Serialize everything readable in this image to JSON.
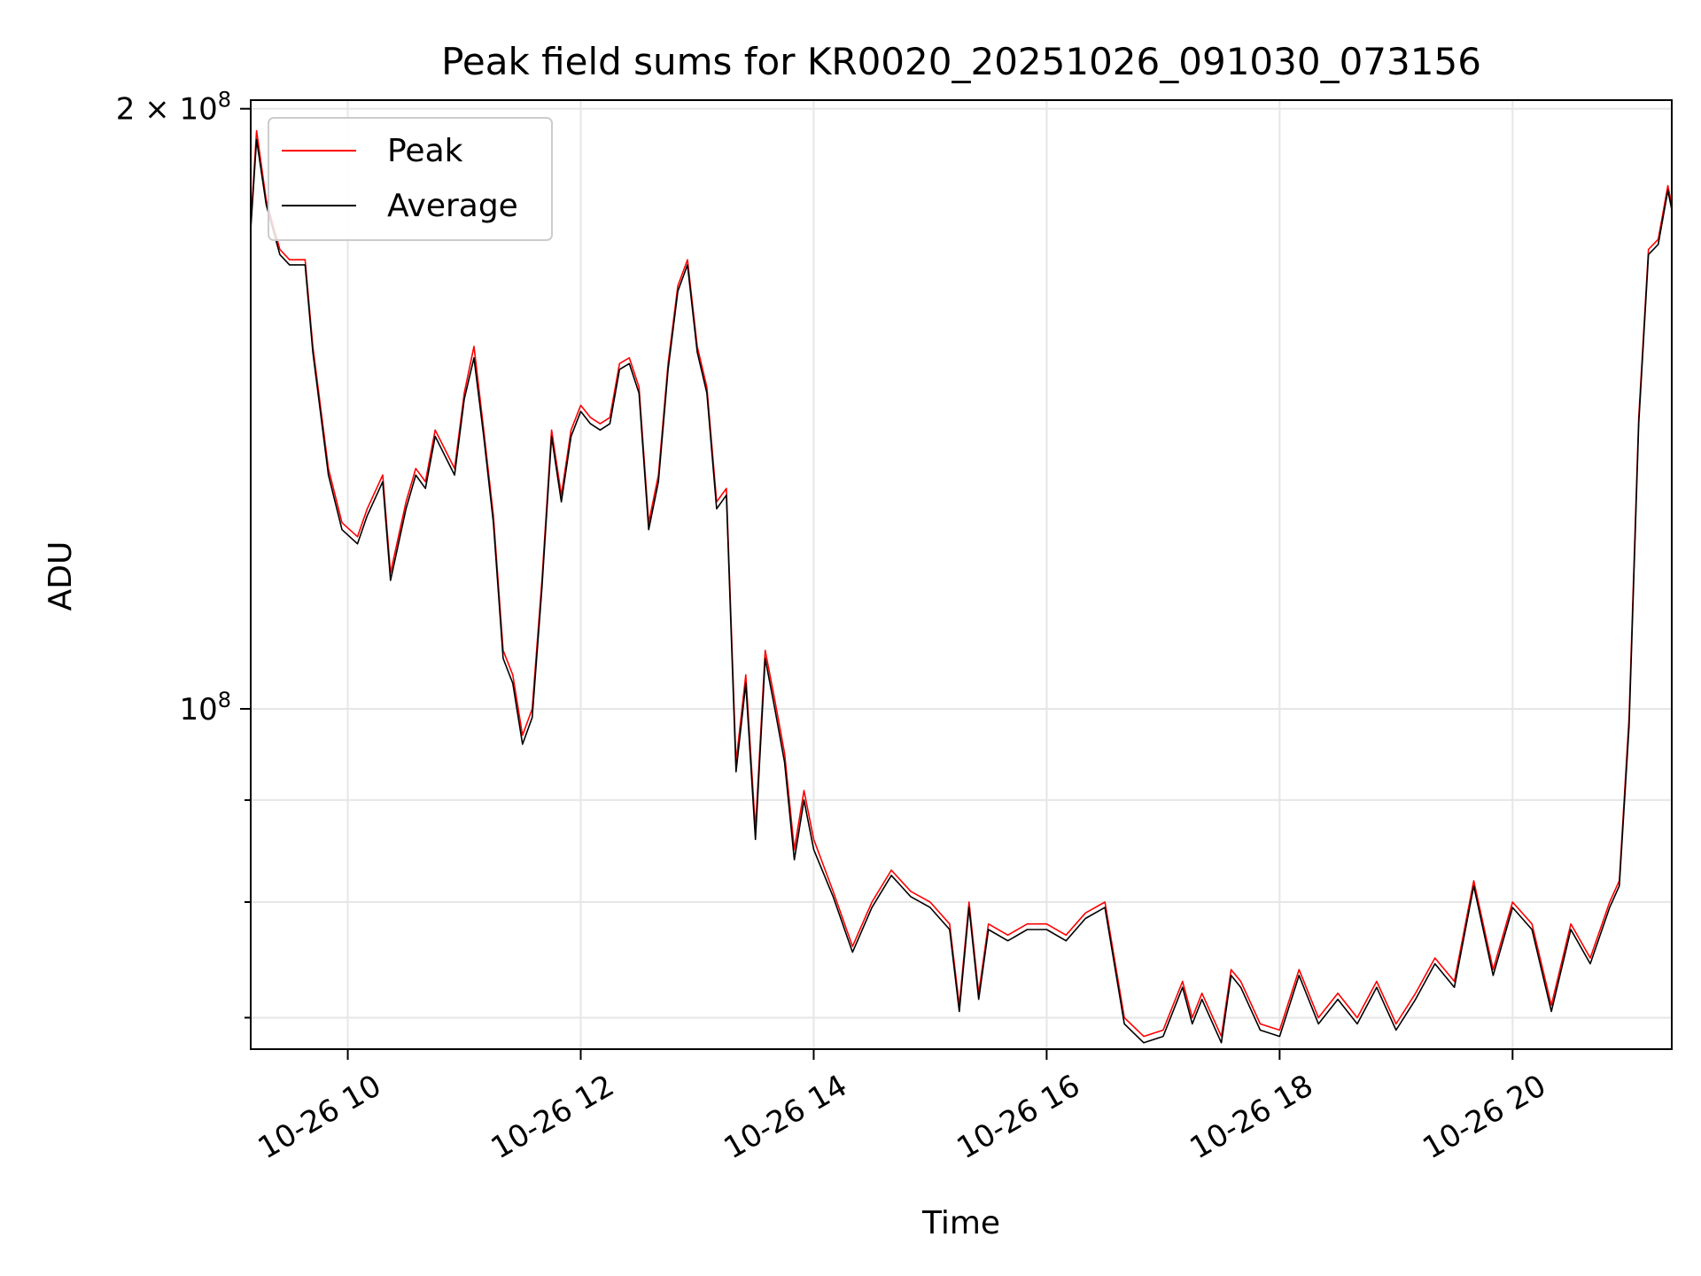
{
  "chart_data": {
    "type": "line",
    "title": "Peak field sums for KR0020_20251026_091030_073156",
    "xlabel": "Time",
    "ylabel": "ADU",
    "x_scale": "time",
    "y_scale": "log",
    "xlim": [
      "2025-10-26 09:10",
      "2025-10-26 21:22"
    ],
    "ylim": [
      67500000,
      202000000
    ],
    "x_ticks": [
      "10-26 10",
      "10-26 12",
      "10-26 14",
      "10-26 16",
      "10-26 18",
      "10-26 20"
    ],
    "x_tick_times": [
      "2025-10-26 10:00",
      "2025-10-26 12:00",
      "2025-10-26 14:00",
      "2025-10-26 16:00",
      "2025-10-26 18:00",
      "2025-10-26 20:00"
    ],
    "y_major_ticks": [
      {
        "value": 100000000,
        "label_base": "10",
        "label_exp": "8"
      },
      {
        "value": 200000000,
        "label_base": "2 × 10",
        "label_exp": "8"
      }
    ],
    "y_minor_ticks": [
      70000000,
      80000000,
      90000000
    ],
    "grid": true,
    "legend_position": "top-left",
    "x": [
      "2025-10-26 09:10",
      "2025-10-26 09:13",
      "2025-10-26 09:18",
      "2025-10-26 09:25",
      "2025-10-26 09:30",
      "2025-10-26 09:38",
      "2025-10-26 09:42",
      "2025-10-26 09:50",
      "2025-10-26 09:57",
      "2025-10-26 10:05",
      "2025-10-26 10:10",
      "2025-10-26 10:18",
      "2025-10-26 10:22",
      "2025-10-26 10:30",
      "2025-10-26 10:35",
      "2025-10-26 10:40",
      "2025-10-26 10:45",
      "2025-10-26 10:55",
      "2025-10-26 11:00",
      "2025-10-26 11:05",
      "2025-10-26 11:10",
      "2025-10-26 11:15",
      "2025-10-26 11:20",
      "2025-10-26 11:25",
      "2025-10-26 11:30",
      "2025-10-26 11:35",
      "2025-10-26 11:40",
      "2025-10-26 11:45",
      "2025-10-26 11:50",
      "2025-10-26 11:55",
      "2025-10-26 12:00",
      "2025-10-26 12:05",
      "2025-10-26 12:10",
      "2025-10-26 12:15",
      "2025-10-26 12:20",
      "2025-10-26 12:25",
      "2025-10-26 12:30",
      "2025-10-26 12:35",
      "2025-10-26 12:40",
      "2025-10-26 12:45",
      "2025-10-26 12:50",
      "2025-10-26 12:55",
      "2025-10-26 13:00",
      "2025-10-26 13:05",
      "2025-10-26 13:10",
      "2025-10-26 13:15",
      "2025-10-26 13:20",
      "2025-10-26 13:25",
      "2025-10-26 13:30",
      "2025-10-26 13:35",
      "2025-10-26 13:40",
      "2025-10-26 13:45",
      "2025-10-26 13:50",
      "2025-10-26 13:55",
      "2025-10-26 14:00",
      "2025-10-26 14:10",
      "2025-10-26 14:20",
      "2025-10-26 14:30",
      "2025-10-26 14:40",
      "2025-10-26 14:50",
      "2025-10-26 15:00",
      "2025-10-26 15:10",
      "2025-10-26 15:15",
      "2025-10-26 15:20",
      "2025-10-26 15:25",
      "2025-10-26 15:30",
      "2025-10-26 15:40",
      "2025-10-26 15:50",
      "2025-10-26 16:00",
      "2025-10-26 16:10",
      "2025-10-26 16:20",
      "2025-10-26 16:30",
      "2025-10-26 16:40",
      "2025-10-26 16:50",
      "2025-10-26 17:00",
      "2025-10-26 17:10",
      "2025-10-26 17:15",
      "2025-10-26 17:20",
      "2025-10-26 17:30",
      "2025-10-26 17:35",
      "2025-10-26 17:40",
      "2025-10-26 17:50",
      "2025-10-26 18:00",
      "2025-10-26 18:10",
      "2025-10-26 18:20",
      "2025-10-26 18:30",
      "2025-10-26 18:40",
      "2025-10-26 18:50",
      "2025-10-26 19:00",
      "2025-10-26 19:10",
      "2025-10-26 19:20",
      "2025-10-26 19:30",
      "2025-10-26 19:40",
      "2025-10-26 19:50",
      "2025-10-26 20:00",
      "2025-10-26 20:10",
      "2025-10-26 20:20",
      "2025-10-26 20:30",
      "2025-10-26 20:40",
      "2025-10-26 20:50",
      "2025-10-26 20:55",
      "2025-10-26 21:00",
      "2025-10-26 21:05",
      "2025-10-26 21:10",
      "2025-10-26 21:15",
      "2025-10-26 21:20",
      "2025-10-26 21:22"
    ],
    "series": [
      {
        "name": "Peak",
        "color": "#ff0000",
        "values": [
          175000000,
          195000000,
          180000000,
          170000000,
          168000000,
          168000000,
          152000000,
          132000000,
          124000000,
          122000000,
          126000000,
          131000000,
          117000000,
          127000000,
          132000000,
          130000000,
          138000000,
          132000000,
          144000000,
          152000000,
          138000000,
          125000000,
          107000000,
          104000000,
          97000000,
          100000000,
          116000000,
          138000000,
          128000000,
          138000000,
          142000000,
          140000000,
          139000000,
          140000000,
          149000000,
          150000000,
          145000000,
          124000000,
          131000000,
          149000000,
          163000000,
          168000000,
          152000000,
          145000000,
          127000000,
          129000000,
          94000000,
          104000000,
          87000000,
          107000000,
          101000000,
          95000000,
          85000000,
          91000000,
          86000000,
          81000000,
          76000000,
          80000000,
          83000000,
          81000000,
          80000000,
          78000000,
          71000000,
          80000000,
          72000000,
          78000000,
          77000000,
          78000000,
          78000000,
          77000000,
          79000000,
          80000000,
          70000000,
          68500000,
          69000000,
          73000000,
          70000000,
          72000000,
          68500000,
          74000000,
          73000000,
          69500000,
          69000000,
          74000000,
          70000000,
          72000000,
          70000000,
          73000000,
          69500000,
          72000000,
          75000000,
          73000000,
          82000000,
          74000000,
          80000000,
          78000000,
          71000000,
          78000000,
          75000000,
          80000000,
          82000000,
          99000000,
          140000000,
          170000000,
          172000000,
          183000000,
          179000000
        ]
      },
      {
        "name": "Average",
        "color": "#000000",
        "values": [
          174000000,
          193000000,
          179000000,
          169000000,
          167000000,
          167000000,
          151000000,
          131000000,
          123000000,
          121000000,
          125000000,
          130000000,
          116000000,
          126000000,
          131000000,
          129000000,
          137000000,
          131000000,
          143000000,
          150000000,
          137000000,
          124000000,
          106000000,
          103000000,
          96000000,
          99000000,
          115000000,
          137000000,
          127000000,
          137000000,
          141000000,
          139000000,
          138000000,
          139000000,
          148000000,
          149000000,
          144000000,
          123000000,
          130000000,
          148000000,
          162000000,
          167000000,
          151000000,
          144000000,
          126000000,
          128000000,
          93000000,
          103000000,
          86000000,
          106000000,
          100000000,
          94000000,
          84000000,
          90000000,
          85000000,
          80500000,
          75500000,
          79500000,
          82500000,
          80500000,
          79500000,
          77500000,
          70500000,
          79500000,
          71500000,
          77500000,
          76500000,
          77500000,
          77500000,
          76500000,
          78500000,
          79500000,
          69500000,
          68000000,
          68500000,
          72500000,
          69500000,
          71500000,
          68000000,
          73500000,
          72500000,
          69000000,
          68500000,
          73500000,
          69500000,
          71500000,
          69500000,
          72500000,
          69000000,
          71500000,
          74500000,
          72500000,
          81500000,
          73500000,
          79500000,
          77500000,
          70500000,
          77500000,
          74500000,
          79500000,
          81500000,
          98000000,
          139000000,
          169000000,
          171000000,
          182000000,
          178000000
        ]
      }
    ]
  }
}
